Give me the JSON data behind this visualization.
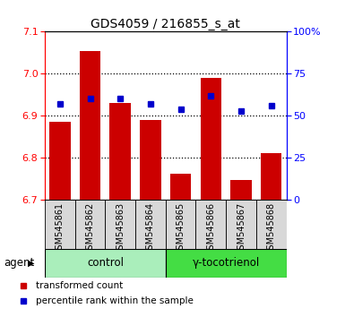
{
  "title": "GDS4059 / 216855_s_at",
  "samples": [
    "GSM545861",
    "GSM545862",
    "GSM545863",
    "GSM545864",
    "GSM545865",
    "GSM545866",
    "GSM545867",
    "GSM545868"
  ],
  "red_values": [
    6.885,
    7.055,
    6.93,
    6.89,
    6.762,
    6.99,
    6.748,
    6.81
  ],
  "blue_values": [
    57,
    60,
    60,
    57,
    54,
    62,
    53,
    56
  ],
  "ylim_left": [
    6.7,
    7.1
  ],
  "ylim_right": [
    0,
    100
  ],
  "yticks_left": [
    6.7,
    6.8,
    6.9,
    7.0,
    7.1
  ],
  "yticks_right": [
    0,
    25,
    50,
    75,
    100
  ],
  "yticklabels_right": [
    "0",
    "25",
    "50",
    "75",
    "100%"
  ],
  "bar_color": "#cc0000",
  "dot_color": "#0000cc",
  "bar_width": 0.7,
  "groups": [
    {
      "label": "control",
      "start": 0,
      "end": 3,
      "color": "#aaeebb"
    },
    {
      "label": "γ-tocotrienol",
      "start": 4,
      "end": 7,
      "color": "#44dd44"
    }
  ],
  "agent_label": "agent",
  "legend_items": [
    {
      "color": "#cc0000",
      "label": "transformed count"
    },
    {
      "color": "#0000cc",
      "label": "percentile rank within the sample"
    }
  ],
  "grid_color": "black",
  "box_color": "#d8d8d8",
  "title_fontsize": 10,
  "tick_fontsize": 8,
  "label_fontsize": 8
}
